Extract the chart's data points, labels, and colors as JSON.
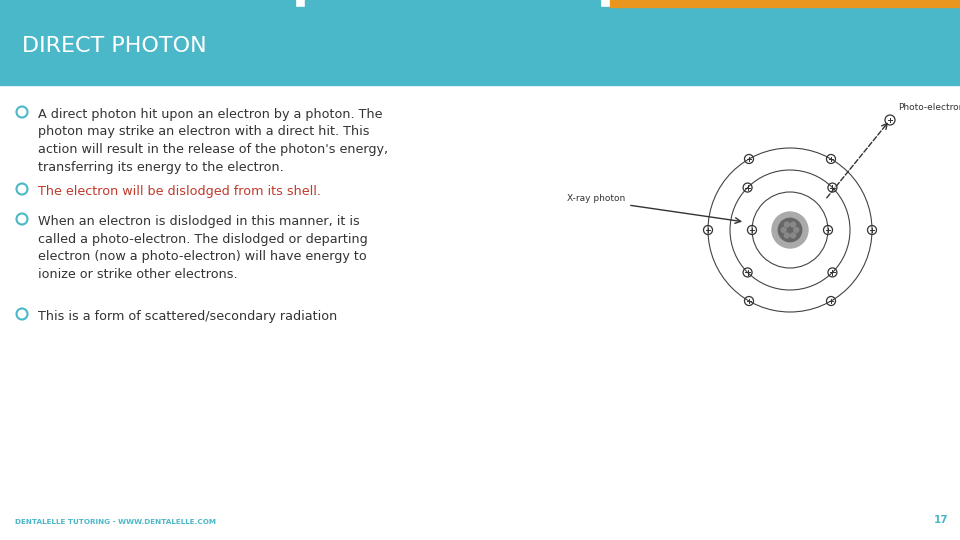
{
  "title": "DIRECT PHOTON",
  "title_color": "#ffffff",
  "title_bg_color": "#4ab8c8",
  "header_bar1_color": "#4ab8c8",
  "header_bar2_color": "#e8961e",
  "bg_color": "#f0f0f0",
  "bullet_color": "#4ab8c8",
  "bullet_text_color": "#333333",
  "highlight_color": "#c0392b",
  "footer_text": "DENTALELLE TUTORING - WWW.DENTALELLE.COM",
  "footer_color": "#4ab8c8",
  "page_number": "17"
}
